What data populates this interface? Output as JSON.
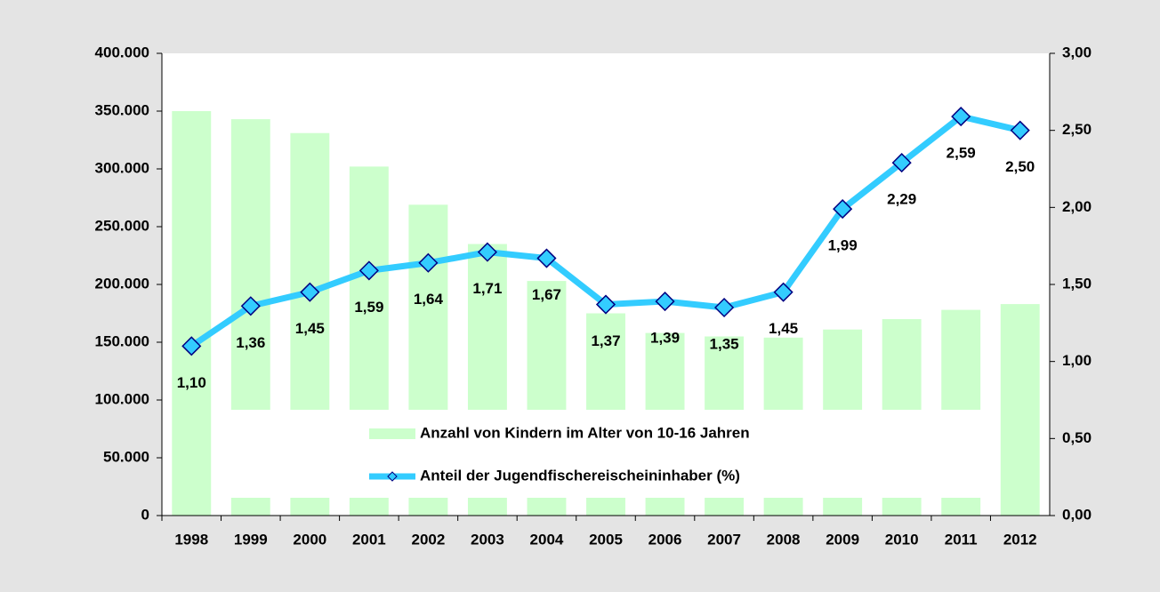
{
  "chart_data": {
    "type": "bar",
    "categories": [
      "1998",
      "1999",
      "2000",
      "2001",
      "2002",
      "2003",
      "2004",
      "2005",
      "2006",
      "2007",
      "2008",
      "2009",
      "2010",
      "2011",
      "2012"
    ],
    "series": [
      {
        "name": "Anzahl von Kindern im Alter von 10-16 Jahren",
        "type": "bar",
        "color": "#ccffcc",
        "values": [
          350000,
          343000,
          331000,
          302000,
          269000,
          235000,
          203000,
          175000,
          158000,
          155000,
          154000,
          161000,
          170000,
          178000,
          183000
        ]
      },
      {
        "name": "Anteil der Jugendfischereischeininhaber (%)",
        "type": "line",
        "axis": "y2",
        "color": "#33ccff",
        "marker_color": "#33ccff",
        "marker_edge": "#000080",
        "values": [
          1.1,
          1.36,
          1.45,
          1.59,
          1.64,
          1.71,
          1.67,
          1.37,
          1.39,
          1.35,
          1.45,
          1.99,
          2.29,
          2.59,
          2.5
        ],
        "value_labels": [
          "1,10",
          "1,36",
          "1,45",
          "1,59",
          "1,64",
          "1,71",
          "1,67",
          "1,37",
          "1,39",
          "1,35",
          "1,45",
          "1,99",
          "2,29",
          "2,59",
          "2,50"
        ]
      }
    ],
    "ylim": [
      0,
      400000
    ],
    "yticks": [
      {
        "value": 0,
        "label": "0"
      },
      {
        "value": 50000,
        "label": "50.000"
      },
      {
        "value": 100000,
        "label": "100.000"
      },
      {
        "value": 150000,
        "label": "150.000"
      },
      {
        "value": 200000,
        "label": "200.000"
      },
      {
        "value": 250000,
        "label": "250.000"
      },
      {
        "value": 300000,
        "label": "300.000"
      },
      {
        "value": 350000,
        "label": "350.000"
      },
      {
        "value": 400000,
        "label": "400.000"
      }
    ],
    "y2lim": [
      0,
      3
    ],
    "y2ticks": [
      {
        "value": 0,
        "label": "0,00"
      },
      {
        "value": 0.5,
        "label": "0,50"
      },
      {
        "value": 1,
        "label": "1,00"
      },
      {
        "value": 1.5,
        "label": "1,50"
      },
      {
        "value": 2,
        "label": "2,00"
      },
      {
        "value": 2.5,
        "label": "2,50"
      },
      {
        "value": 3,
        "label": "3,00"
      }
    ],
    "grid": false,
    "legend": "bottom"
  }
}
